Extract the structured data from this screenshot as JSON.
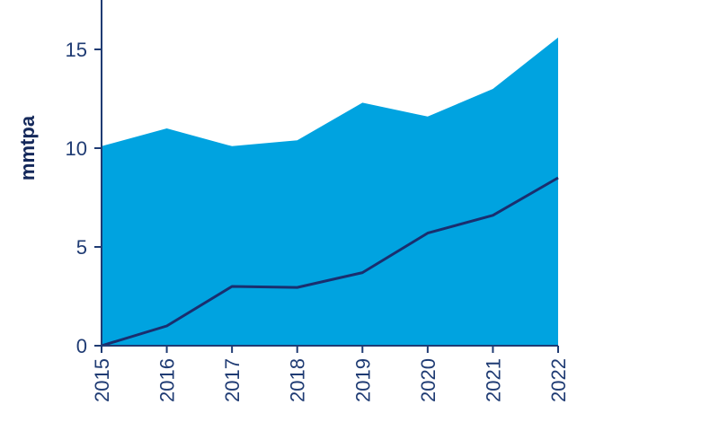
{
  "chart_data": {
    "type": "area",
    "title": "",
    "xlabel": "",
    "ylabel": "mmtpa",
    "x": [
      "2015",
      "2016",
      "2017",
      "2018",
      "2019",
      "2020",
      "2021",
      "2022"
    ],
    "yticks": [
      "0",
      "5",
      "10",
      "15"
    ],
    "ylim": [
      0,
      17.5
    ],
    "grid": false,
    "legend": "none",
    "series": [
      {
        "kind": "area",
        "color": "#00a3e0",
        "values": [
          10.1,
          11.0,
          10.1,
          10.4,
          12.3,
          11.6,
          13.0,
          15.6
        ]
      },
      {
        "kind": "line",
        "color": "#1a2e6e",
        "values": [
          0.0,
          1.0,
          3.0,
          2.95,
          3.7,
          5.7,
          6.6,
          8.5
        ]
      }
    ],
    "axis_color": "#1f3b73"
  }
}
